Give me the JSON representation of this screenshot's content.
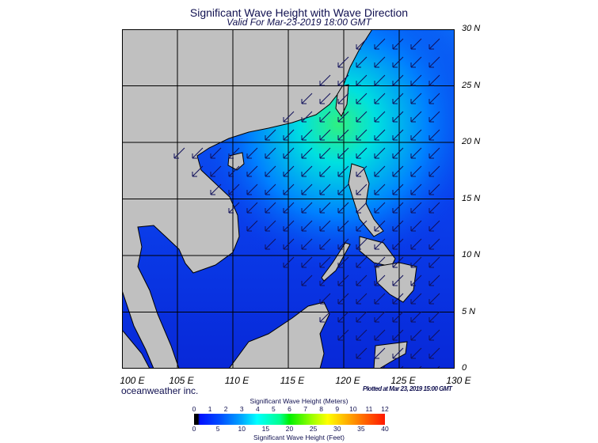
{
  "title": "Significant Wave Height with Wave Direction",
  "subtitle": "Valid For Mar-23-2019 18:00 GMT",
  "map": {
    "lon_range": [
      100,
      130
    ],
    "lat_range": [
      0,
      30
    ],
    "lat_labels": [
      "30 N",
      "25 N",
      "20 N",
      "15 N",
      "10 N",
      "5 N",
      "0"
    ],
    "lon_labels": [
      "100 E",
      "105 E",
      "110 E",
      "115 E",
      "120 E",
      "125 E",
      "130 E"
    ],
    "colors": {
      "land": "#c0c0c0",
      "ocean_low": "#0a30e8",
      "ocean_mid": "#00c8ff",
      "ocean_high": "#20f080",
      "arrows": "#10105a"
    },
    "predominant_wave_direction": "toward southwest"
  },
  "brand": "oceanweather inc.",
  "plotted": "Plotted at Mar 23, 2019 15:00 GMT",
  "colorbar": {
    "meters_title": "Significant Wave Height (Meters)",
    "feet_title": "Significant Wave Height (Feet)",
    "meters_ticks": [
      "0",
      "1",
      "2",
      "3",
      "4",
      "5",
      "6",
      "7",
      "8",
      "9",
      "10",
      "11",
      "12"
    ],
    "feet_ticks": [
      "0",
      "5",
      "10",
      "15",
      "20",
      "25",
      "30",
      "35",
      "40"
    ]
  }
}
